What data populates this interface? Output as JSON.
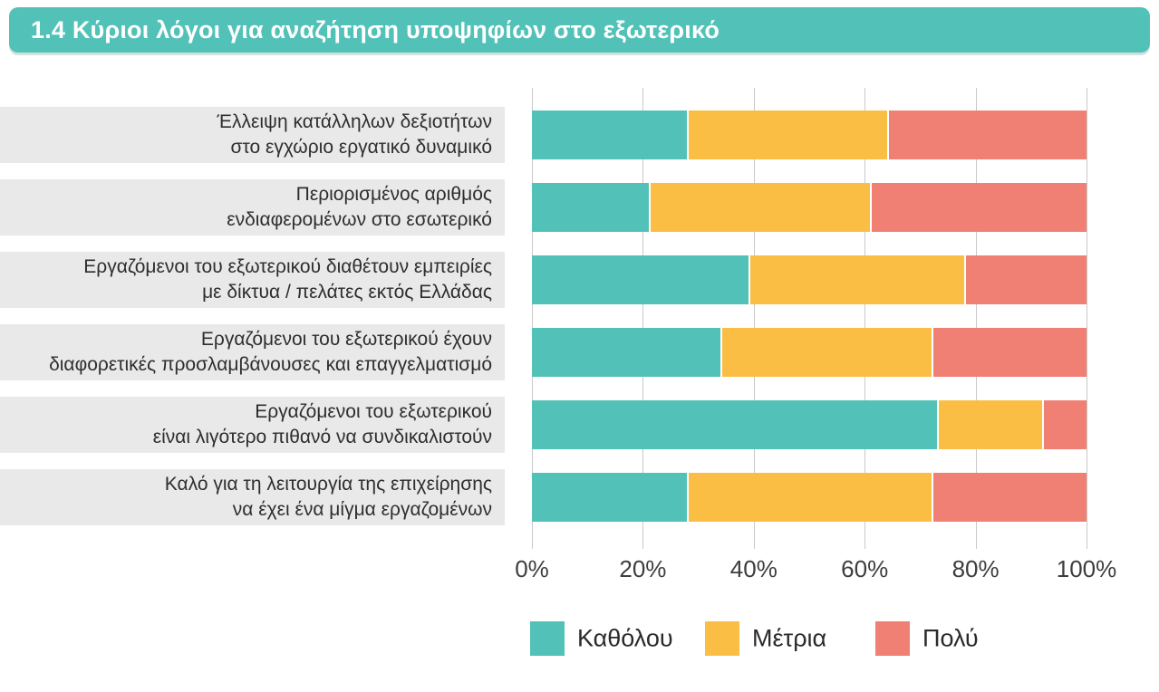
{
  "header": {
    "title": "1.4 Κύριοι λόγοι για αναζήτηση υποψηφίων στο εξωτερικό"
  },
  "colors": {
    "accent_teal": "#52C2B8",
    "series_kathulou": "#52C2B8",
    "series_metria": "#FBBE45",
    "series_poly": "#F08073",
    "label_background": "#E9E9E9",
    "gridline": "#C9C9C9"
  },
  "chart_data": {
    "type": "bar",
    "orientation": "horizontal",
    "stacked": true,
    "percent_scale": true,
    "title": "1.4 Κύριοι λόγοι για αναζήτηση υποψηφίων στο εξωτερικό",
    "xlabel": "",
    "ylabel": "",
    "xlim": [
      0,
      100
    ],
    "grid": true,
    "legend_position": "bottom",
    "x_ticks": [
      "0%",
      "20%",
      "40%",
      "60%",
      "80%",
      "100%"
    ],
    "categories": [
      "Έλλειψη κατάλληλων δεξιοτήτων στο εγχώριο εργατικό δυναμικό",
      "Περιορισμένος αριθμός ενδιαφερομένων στο εσωτερικό",
      "Εργαζόμενοι του εξωτερικού διαθέτουν εμπειρίες με δίκτυα / πελάτες εκτός Ελλάδας",
      "Εργαζόμενοι του εξωτερικού έχουν διαφορετικές προσλαμβάνουσες και επαγγελματισμό",
      "Εργαζόμενοι του εξωτερικού είναι λιγότερο πιθανό να συνδικαλιστούν",
      "Καλό για τη λειτουργία της επιχείρησης να έχει ένα μίγμα εργαζομένων"
    ],
    "category_lines": [
      [
        "Έλλειψη κατάλληλων δεξιοτήτων",
        "στο εγχώριο εργατικό  δυναμικό"
      ],
      [
        "Περιορισμένος αριθμός",
        "ενδιαφερομένων στο εσωτερικό"
      ],
      [
        "Εργαζόμενοι του εξωτερικού διαθέτουν εμπειρίες",
        "με δίκτυα / πελάτες εκτός Ελλάδας"
      ],
      [
        "Εργαζόμενοι του εξωτερικού έχουν",
        "διαφορετικές προσλαμβάνουσες και επαγγελματισμό"
      ],
      [
        "Εργαζόμενοι του εξωτερικού",
        "είναι λιγότερο πιθανό να συνδικαλιστούν"
      ],
      [
        "Καλό για τη λειτουργία της επιχείρησης",
        "να έχει ένα μίγμα εργαζομένων"
      ]
    ],
    "series": [
      {
        "name": "Καθόλου",
        "color": "#52C2B8",
        "values": [
          28,
          21,
          39,
          34,
          73,
          28
        ]
      },
      {
        "name": "Μέτρια",
        "color": "#FBBE45",
        "values": [
          36,
          40,
          39,
          38,
          19,
          44
        ]
      },
      {
        "name": "Πολύ",
        "color": "#F08073",
        "values": [
          36,
          39,
          22,
          28,
          8,
          28
        ]
      }
    ]
  }
}
